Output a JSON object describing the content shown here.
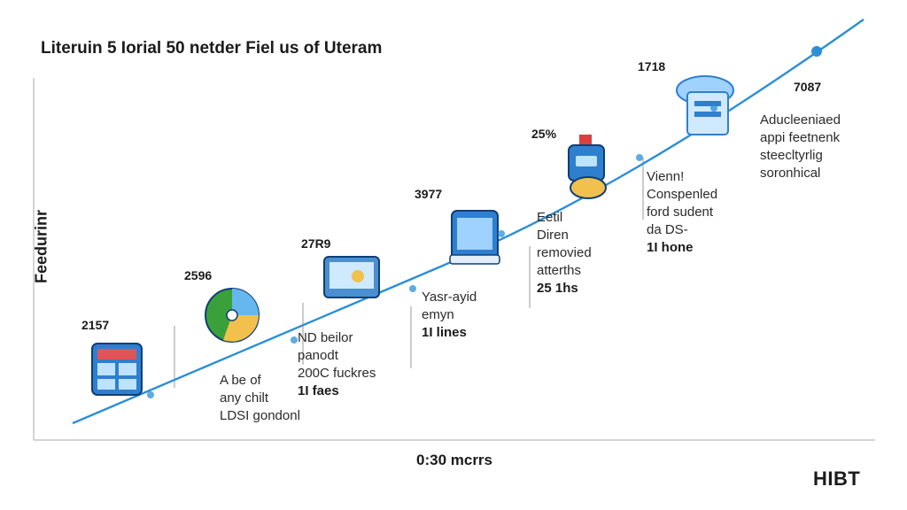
{
  "title": "Literuin 5 Iorial 50 netder Fiel us of Uteram",
  "ylabel": "Feedurinr",
  "xlabel": "0:30 mcrrs",
  "brand": "HIBT",
  "colors": {
    "line": "#2b8fd6",
    "dot": "#2b8fd6",
    "axis": "#b9b9b9"
  },
  "chart_data": {
    "type": "line",
    "title": "Literuin 5 Iorial 50 netder Fiel us of Uteram",
    "xlabel": "0:30 mcrrs",
    "ylabel": "Feedurinr",
    "grid": false,
    "legend": "none",
    "points": [
      {
        "value_label": "2157",
        "icon": "document-icon",
        "lines": []
      },
      {
        "value_label": "2596",
        "icon": "pie-chart-icon",
        "lines": [
          "A be of",
          "any chilt",
          "LDSI gondonl"
        ]
      },
      {
        "value_label": "27R9",
        "icon": "tablet-icon",
        "lines": [
          "ND beilor",
          "panodt",
          "200C fuckres",
          "1I faes"
        ]
      },
      {
        "value_label": "3977",
        "icon": "smartphone-icon",
        "lines": [
          "Yasr-ayid",
          "emyn",
          "1I lines"
        ]
      },
      {
        "value_label": "25%",
        "icon": "robot-icon",
        "lines": [
          "Eetil",
          "Diren",
          "removied",
          "atterths",
          "25 1hs"
        ]
      },
      {
        "value_label": "1718",
        "icon": "server-icon",
        "lines": [
          "Vienn!",
          "Conspenled",
          "ford sudent",
          "da DS-",
          "1I hone"
        ]
      },
      {
        "value_label": "7087",
        "icon": "endpoint-dot",
        "lines": [
          "Aducleeniaed",
          "appi feetnenk",
          "steecltyrlig",
          "soronhical"
        ]
      }
    ]
  }
}
